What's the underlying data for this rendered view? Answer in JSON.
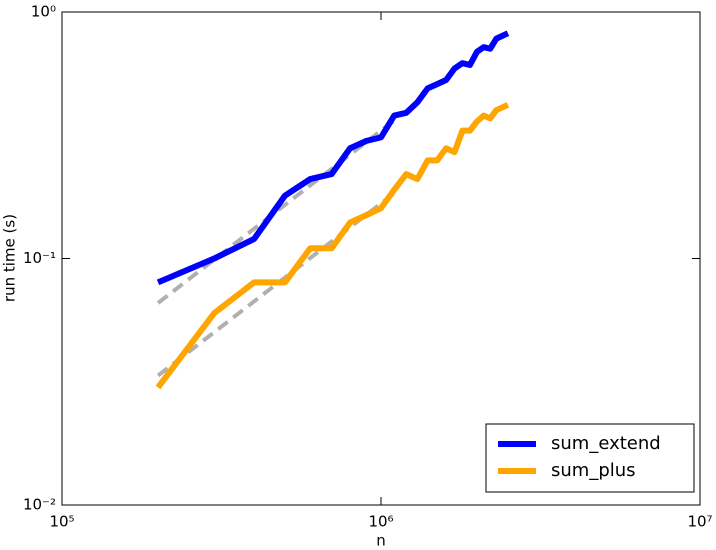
{
  "chart_data": {
    "type": "line",
    "xlabel": "n",
    "ylabel": "run time (s)",
    "xscale": "log",
    "yscale": "log",
    "legend": "lower right",
    "x": [
      200000,
      300000,
      400000,
      500000,
      600000,
      700000,
      800000,
      900000,
      1000000,
      1100000,
      1200000,
      1300000,
      1400000,
      1500000,
      1600000,
      1700000,
      1800000,
      1900000,
      2000000,
      2100000,
      2200000,
      2300000,
      2400000,
      2500000
    ],
    "series": [
      {
        "name": "sum_extend",
        "color": "#0000ff",
        "values": [
          0.08,
          0.1,
          0.12,
          0.18,
          0.21,
          0.22,
          0.28,
          0.3,
          0.31,
          0.38,
          0.39,
          0.43,
          0.49,
          0.51,
          0.53,
          0.59,
          0.62,
          0.61,
          0.69,
          0.72,
          0.71,
          0.78,
          0.8,
          0.82
        ]
      },
      {
        "name": "sum_plus",
        "color": "#ffa500",
        "values": [
          0.03,
          0.06,
          0.08,
          0.08,
          0.11,
          0.11,
          0.14,
          0.15,
          0.16,
          0.19,
          0.22,
          0.21,
          0.25,
          0.25,
          0.28,
          0.27,
          0.33,
          0.33,
          0.36,
          0.38,
          0.37,
          0.4,
          0.41,
          0.42
        ]
      },
      {
        "color": "#b0b0b0",
        "dashed": true,
        "x": [
          200000,
          1100000
        ],
        "values": [
          0.066,
          0.363
        ]
      },
      {
        "color": "#b0b0b0",
        "dashed": true,
        "x": [
          200000,
          1100000
        ],
        "values": [
          0.0335,
          0.184
        ]
      }
    ],
    "xlim": [
      100000,
      10000000
    ],
    "xticks": [
      {
        "value": 100000,
        "label": "10⁵"
      },
      {
        "value": 1000000,
        "label": "10⁶"
      },
      {
        "value": 10000000,
        "label": "10⁷"
      }
    ],
    "ylim": [
      0.01,
      1
    ],
    "yticks": [
      {
        "value": 0.01,
        "label": "10⁻²"
      },
      {
        "value": 0.1,
        "label": "10⁻¹"
      },
      {
        "value": 1,
        "label": "10⁰"
      }
    ]
  }
}
